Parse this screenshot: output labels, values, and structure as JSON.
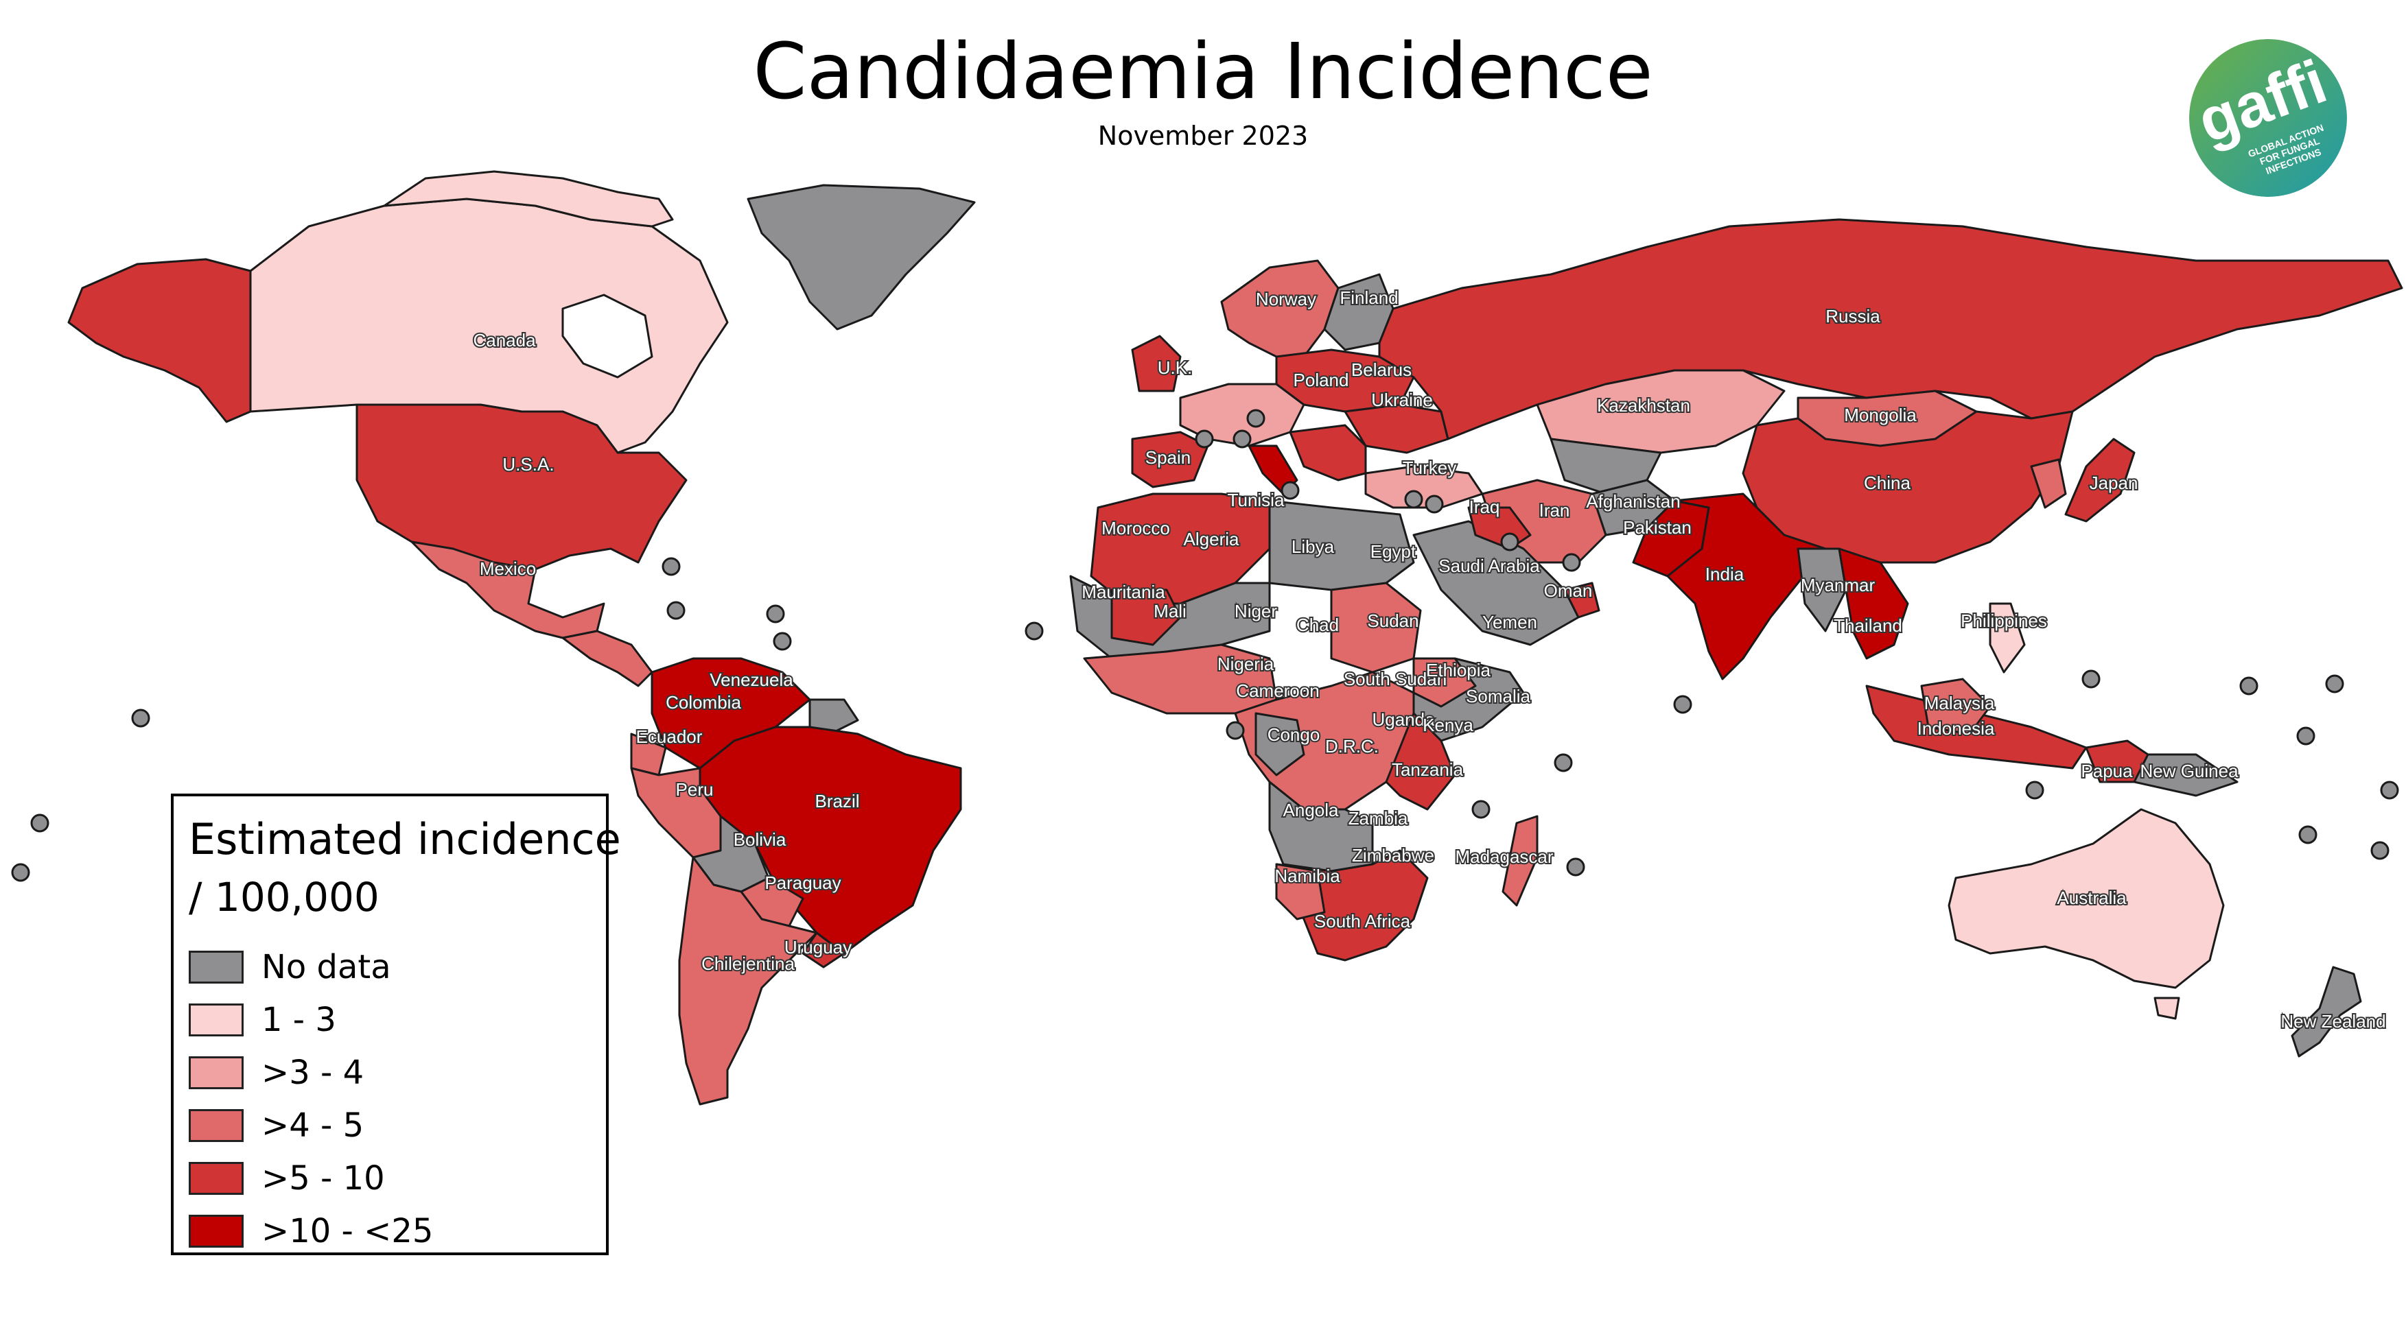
{
  "title": "Candidaemia Incidence",
  "subtitle": "November 2023",
  "legend": {
    "title": "Estimated incidence",
    "subtitle": "/ 100,000",
    "items": [
      {
        "label": "No data",
        "color": "#8f8f92"
      },
      {
        "label": "1 - 3",
        "color": "#fbd3d3"
      },
      {
        "label": ">3 - 4",
        "color": "#f0a2a2"
      },
      {
        "label": ">4 - 5",
        "color": "#e06a6a"
      },
      {
        "label": ">5 - 10",
        "color": "#d03434"
      },
      {
        "label": ">10 - <25",
        "color": "#c00000"
      }
    ]
  },
  "logo": {
    "text": "gaffi",
    "caption_lines": [
      "GLOBAL ACTION",
      "FOR FUNGAL",
      "INFECTIONS"
    ],
    "colors": [
      "#6bb04a",
      "#1f9aa8"
    ]
  },
  "country_labels": [
    {
      "name": "Canada",
      "cls": 1
    },
    {
      "name": "U.S.A.",
      "cls": 4
    },
    {
      "name": "Mexico",
      "cls": 3
    },
    {
      "name": "Venezuela",
      "cls": 5
    },
    {
      "name": "Colombia",
      "cls": 5
    },
    {
      "name": "Ecuador",
      "cls": 3
    },
    {
      "name": "Peru",
      "cls": 3
    },
    {
      "name": "Brazil",
      "cls": 5
    },
    {
      "name": "Bolivia",
      "cls": 0
    },
    {
      "name": "Paraguay",
      "cls": 3
    },
    {
      "name": "Uruguay",
      "cls": 4
    },
    {
      "name": "Chilejentina",
      "cls": 3
    },
    {
      "name": "Norway",
      "cls": 3
    },
    {
      "name": "Finland",
      "cls": 0
    },
    {
      "name": "U.K.",
      "cls": 4
    },
    {
      "name": "Poland",
      "cls": 4
    },
    {
      "name": "Belarus",
      "cls": 4
    },
    {
      "name": "Ukraine",
      "cls": 4
    },
    {
      "name": "Spain",
      "cls": 4
    },
    {
      "name": "Turkey",
      "cls": 3
    },
    {
      "name": "Tunisia",
      "cls": 4
    },
    {
      "name": "Morocco",
      "cls": 4
    },
    {
      "name": "Algeria",
      "cls": 4
    },
    {
      "name": "Libya",
      "cls": 0
    },
    {
      "name": "Egypt",
      "cls": 2
    },
    {
      "name": "Mauritania",
      "cls": 0
    },
    {
      "name": "Mali",
      "cls": 4
    },
    {
      "name": "Niger",
      "cls": 0
    },
    {
      "name": "Chad",
      "cls": 0
    },
    {
      "name": "Sudan",
      "cls": 3
    },
    {
      "name": "Nigeria",
      "cls": 4
    },
    {
      "name": "Cameroon",
      "cls": 3
    },
    {
      "name": "South Sudan",
      "cls": 0
    },
    {
      "name": "Ethiopia",
      "cls": 3
    },
    {
      "name": "Somalia",
      "cls": 0
    },
    {
      "name": "Uganda",
      "cls": 4
    },
    {
      "name": "Kenya",
      "cls": 4
    },
    {
      "name": "Congo",
      "cls": 0
    },
    {
      "name": "D.R.C.",
      "cls": 3
    },
    {
      "name": "Tanzania",
      "cls": 3
    },
    {
      "name": "Angola",
      "cls": 0
    },
    {
      "name": "Zambia",
      "cls": 2
    },
    {
      "name": "Zimbabwe",
      "cls": 4
    },
    {
      "name": "Namibia",
      "cls": 3
    },
    {
      "name": "South Africa",
      "cls": 4
    },
    {
      "name": "Madagascar",
      "cls": 3
    },
    {
      "name": "Saudi Arabia",
      "cls": 0
    },
    {
      "name": "Yemen",
      "cls": 0
    },
    {
      "name": "Oman",
      "cls": 4
    },
    {
      "name": "Iraq",
      "cls": 4
    },
    {
      "name": "Iran",
      "cls": 3
    },
    {
      "name": "Afghanistan",
      "cls": 0
    },
    {
      "name": "Pakistan",
      "cls": 5
    },
    {
      "name": "India",
      "cls": 5
    },
    {
      "name": "Russia",
      "cls": 4
    },
    {
      "name": "Kazakhstan",
      "cls": 2
    },
    {
      "name": "Mongolia",
      "cls": 3
    },
    {
      "name": "China",
      "cls": 4
    },
    {
      "name": "Japan",
      "cls": 4
    },
    {
      "name": "Myanmar",
      "cls": 0
    },
    {
      "name": "Thailand",
      "cls": 5
    },
    {
      "name": "Philippines",
      "cls": 1
    },
    {
      "name": "Malaysia",
      "cls": 3
    },
    {
      "name": "Indonesia",
      "cls": 4
    },
    {
      "name": "Papua",
      "cls": 4
    },
    {
      "name": "New Guinea",
      "cls": 0
    },
    {
      "name": "Australia",
      "cls": 1
    },
    {
      "name": "New Zealand",
      "cls": 0
    }
  ]
}
